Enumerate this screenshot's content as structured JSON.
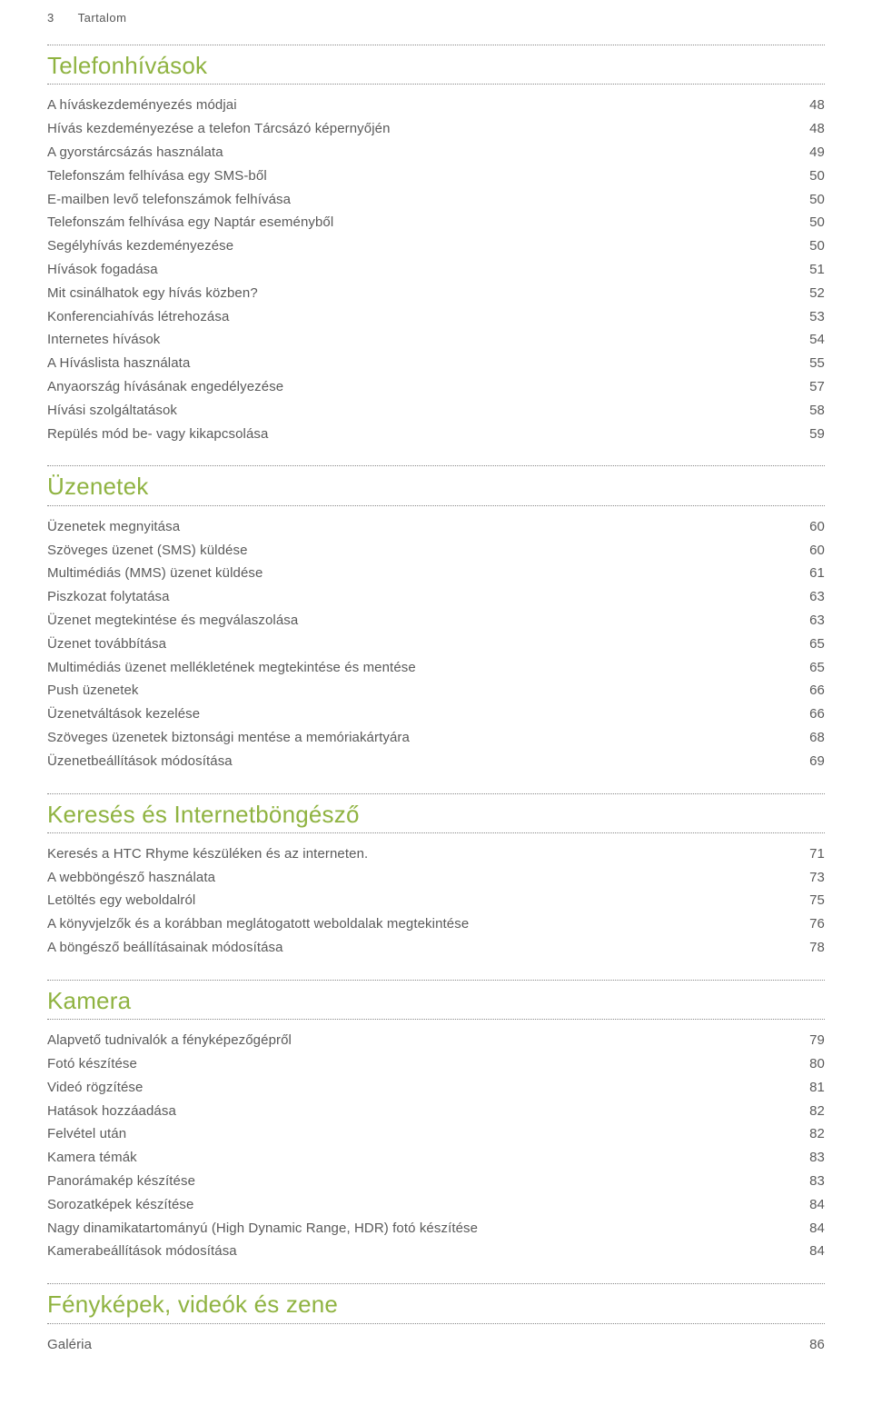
{
  "header": {
    "page_number": "3",
    "running_title": "Tartalom"
  },
  "colors": {
    "section_title": "#8fb341",
    "text": "#5a5a5a",
    "dotted": "#888888"
  },
  "sections": [
    {
      "title": "Telefonhívások",
      "entries": [
        {
          "label": "A híváskezdeményezés módjai",
          "page": "48"
        },
        {
          "label": "Hívás kezdeményezése a telefon Tárcsázó képernyőjén",
          "page": "48"
        },
        {
          "label": "A gyorstárcsázás használata",
          "page": "49"
        },
        {
          "label": "Telefonszám felhívása egy SMS-ből",
          "page": "50"
        },
        {
          "label": "E-mailben levő telefonszámok felhívása",
          "page": "50"
        },
        {
          "label": "Telefonszám felhívása egy Naptár eseményből",
          "page": "50"
        },
        {
          "label": "Segélyhívás kezdeményezése",
          "page": "50"
        },
        {
          "label": "Hívások fogadása",
          "page": "51"
        },
        {
          "label": "Mit csinálhatok egy hívás közben?",
          "page": "52"
        },
        {
          "label": "Konferenciahívás létrehozása",
          "page": "53"
        },
        {
          "label": "Internetes hívások",
          "page": "54"
        },
        {
          "label": "A Híváslista használata",
          "page": "55"
        },
        {
          "label": "Anyaország hívásának engedélyezése",
          "page": "57"
        },
        {
          "label": "Hívási szolgáltatások",
          "page": "58"
        },
        {
          "label": "Repülés mód be- vagy kikapcsolása",
          "page": "59"
        }
      ]
    },
    {
      "title": "Üzenetek",
      "entries": [
        {
          "label": "Üzenetek megnyitása",
          "page": "60"
        },
        {
          "label": "Szöveges üzenet (SMS) küldése",
          "page": "60"
        },
        {
          "label": "Multimédiás (MMS) üzenet küldése",
          "page": "61"
        },
        {
          "label": "Piszkozat folytatása",
          "page": "63"
        },
        {
          "label": "Üzenet megtekintése és megválaszolása",
          "page": "63"
        },
        {
          "label": "Üzenet továbbítása",
          "page": "65"
        },
        {
          "label": "Multimédiás üzenet mellékletének megtekintése és mentése",
          "page": "65"
        },
        {
          "label": "Push üzenetek",
          "page": "66"
        },
        {
          "label": "Üzenetváltások kezelése",
          "page": "66"
        },
        {
          "label": "Szöveges üzenetek biztonsági mentése a memóriakártyára",
          "page": "68"
        },
        {
          "label": "Üzenetbeállítások módosítása",
          "page": "69"
        }
      ]
    },
    {
      "title": "Keresés és Internetböngésző",
      "entries": [
        {
          "label": "Keresés a HTC Rhyme készüléken és az interneten.",
          "page": "71"
        },
        {
          "label": "A webböngésző használata",
          "page": "73"
        },
        {
          "label": "Letöltés egy weboldalról",
          "page": "75"
        },
        {
          "label": "A könyvjelzők és a korábban meglátogatott weboldalak megtekintése",
          "page": "76"
        },
        {
          "label": "A böngésző beállításainak módosítása",
          "page": "78"
        }
      ]
    },
    {
      "title": "Kamera",
      "entries": [
        {
          "label": "Alapvető tudnivalók a fényképezőgépről",
          "page": "79"
        },
        {
          "label": "Fotó készítése",
          "page": "80"
        },
        {
          "label": "Videó rögzítése",
          "page": "81"
        },
        {
          "label": "Hatások hozzáadása",
          "page": "82"
        },
        {
          "label": "Felvétel után",
          "page": "82"
        },
        {
          "label": "Kamera témák",
          "page": "83"
        },
        {
          "label": "Panorámakép készítése",
          "page": "83"
        },
        {
          "label": "Sorozatképek készítése",
          "page": "84"
        },
        {
          "label": "Nagy dinamikatartományú (High Dynamic Range, HDR) fotó készítése",
          "page": "84"
        },
        {
          "label": "Kamerabeállítások módosítása",
          "page": "84"
        }
      ]
    },
    {
      "title": "Fényképek, videók és zene",
      "entries": [
        {
          "label": "Galéria",
          "page": "86"
        }
      ]
    }
  ]
}
